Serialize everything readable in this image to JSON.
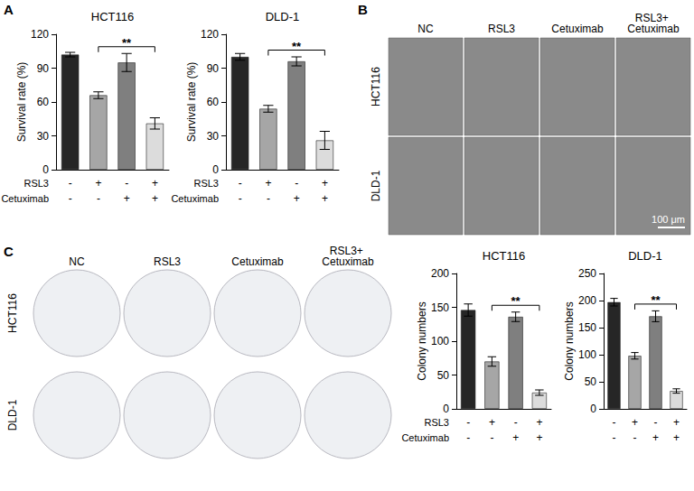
{
  "panel_labels": [
    "A",
    "B",
    "C"
  ],
  "chart_data": [
    {
      "type": "bar",
      "title": "HCT116",
      "ylabel": "Survival rate (%)",
      "treatments": [
        {
          "label": "RSL3",
          "marks": [
            "-",
            "+",
            "-",
            "+"
          ]
        },
        {
          "label": "Cetuximab",
          "marks": [
            "-",
            "-",
            "+",
            "+"
          ]
        }
      ],
      "values": [
        102,
        66,
        95,
        41
      ],
      "errors": [
        2,
        3,
        8,
        5
      ],
      "colors": [
        "#262626",
        "#a6a6a6",
        "#7f7f7f",
        "#dcdcdc"
      ],
      "ylim": [
        0,
        120
      ],
      "yticks": [
        0,
        30,
        60,
        90,
        120
      ],
      "significance": [
        {
          "from": 1,
          "to": 3,
          "label": "**"
        }
      ]
    },
    {
      "type": "bar",
      "title": "DLD-1",
      "ylabel": "Survival rate (%)",
      "treatments": [
        {
          "label": "RSL3",
          "marks": [
            "-",
            "+",
            "-",
            "+"
          ]
        },
        {
          "label": "Cetuximab",
          "marks": [
            "-",
            "-",
            "+",
            "+"
          ]
        }
      ],
      "values": [
        100,
        54,
        96,
        26
      ],
      "errors": [
        3,
        3,
        4,
        8
      ],
      "colors": [
        "#262626",
        "#a6a6a6",
        "#7f7f7f",
        "#dcdcdc"
      ],
      "ylim": [
        0,
        120
      ],
      "yticks": [
        0,
        30,
        60,
        90,
        120
      ],
      "significance": [
        {
          "from": 1,
          "to": 3,
          "label": "**"
        }
      ]
    },
    {
      "type": "bar",
      "title": "HCT116",
      "ylabel": "Colony numbers",
      "treatments": [
        {
          "label": "RSL3",
          "marks": [
            "-",
            "+",
            "-",
            "+"
          ]
        },
        {
          "label": "Cetuximab",
          "marks": [
            "-",
            "-",
            "+",
            "+"
          ]
        }
      ],
      "values": [
        146,
        70,
        136,
        24
      ],
      "errors": [
        9,
        7,
        7,
        4
      ],
      "colors": [
        "#262626",
        "#a6a6a6",
        "#7f7f7f",
        "#dcdcdc"
      ],
      "ylim": [
        0,
        200
      ],
      "yticks": [
        0,
        50,
        100,
        150,
        200
      ],
      "significance": [
        {
          "from": 1,
          "to": 3,
          "label": "**"
        }
      ]
    },
    {
      "type": "bar",
      "title": "DLD-1",
      "ylabel": "Colony numbers",
      "treatments": [
        {
          "label": null,
          "marks": [
            "-",
            "+",
            "-",
            "+"
          ]
        },
        {
          "label": null,
          "marks": [
            "-",
            "-",
            "+",
            "+"
          ]
        }
      ],
      "values": [
        197,
        98,
        171,
        33
      ],
      "errors": [
        7,
        6,
        10,
        4
      ],
      "colors": [
        "#262626",
        "#a6a6a6",
        "#7f7f7f",
        "#dcdcdc"
      ],
      "ylim": [
        0,
        250
      ],
      "yticks": [
        0,
        50,
        100,
        150,
        200,
        250
      ],
      "significance": [
        {
          "from": 1,
          "to": 3,
          "label": "**"
        }
      ]
    }
  ],
  "images": {
    "B": {
      "columns": [
        "NC",
        "RSL3",
        "Cetuximab",
        "RSL3+ Cetuximab"
      ],
      "rows": [
        "HCT116",
        "DLD-1"
      ],
      "scale_bar": "100 μm"
    },
    "C": {
      "columns": [
        "NC",
        "RSL3",
        "Cetuximab",
        "RSL3+ Cetuximab"
      ],
      "rows": [
        "HCT116",
        "DLD-1"
      ]
    }
  }
}
